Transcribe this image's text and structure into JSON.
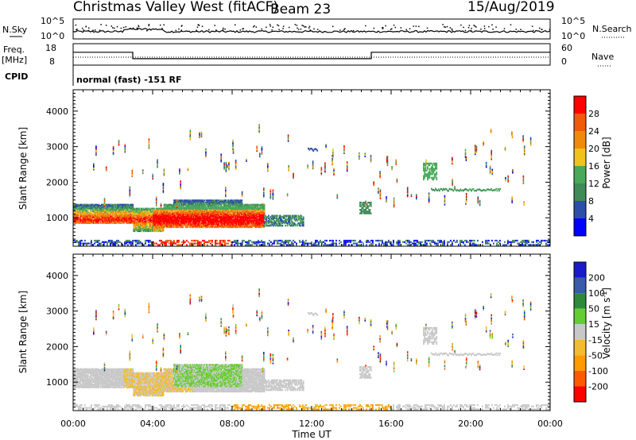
{
  "header": {
    "title": "Christmas Valley West (fitACF)",
    "beam": "Beam 23",
    "date": "15/Aug/2019"
  },
  "panels": {
    "nsky": {
      "label": "N.Sky",
      "tick_top": "10^5",
      "tick_bottom": "10^0",
      "right_tick_top": "10^5",
      "right_tick_bottom": "10^0",
      "right_label": "N.Search"
    },
    "freq": {
      "label_line1": "Freq.",
      "label_line2": "[MHz]",
      "tick_top": "18",
      "tick_bottom": "8",
      "right_tick_top": "60",
      "right_tick_bottom": "0",
      "right_label": "Nave"
    },
    "cpid": {
      "label": "CPID",
      "value": "normal (fast) -151 RF"
    }
  },
  "colors": {
    "power": [
      "#0000ff",
      "#2e4fa8",
      "#3f8a57",
      "#4aa85a",
      "#f0c21a",
      "#f08a0a",
      "#f05a0a",
      "#ff0000"
    ],
    "velocity": [
      "#ff0000",
      "#ff5a00",
      "#ff9a00",
      "#f2bb30",
      "#c8c8c8",
      "#66cc33",
      "#2e8a3a",
      "#3a5aaa",
      "#1a1acc"
    ]
  },
  "chart_data": [
    {
      "type": "heatmap",
      "name": "power",
      "ylabel": "Slant Range [km]",
      "xlabel": "",
      "ylim": [
        200,
        4600
      ],
      "yticks": [
        1000,
        2000,
        3000,
        4000
      ],
      "xlim": [
        0,
        24
      ],
      "colorbar": {
        "label": "Power [dB]",
        "ticks": [
          4,
          8,
          12,
          16,
          20,
          24,
          28
        ],
        "range": [
          0,
          32
        ]
      }
    },
    {
      "type": "heatmap",
      "name": "velocity",
      "ylabel": "Slant Range [km]",
      "xlabel": "Time UT",
      "ylim": [
        200,
        4600
      ],
      "yticks": [
        1000,
        2000,
        3000,
        4000
      ],
      "xlim": [
        0,
        24
      ],
      "xticks": [
        "00:00",
        "04:00",
        "08:00",
        "12:00",
        "16:00",
        "20:00",
        "00:00"
      ],
      "colorbar": {
        "label": "Velocity [m s^-1]",
        "ticks": [
          200,
          100,
          50,
          15,
          -15,
          -50,
          -100,
          -200
        ]
      }
    }
  ],
  "frequency_track": {
    "x_hours": [
      0,
      3,
      3,
      15,
      15,
      24
    ],
    "mhz": [
      14,
      14,
      11,
      11,
      14,
      14
    ]
  }
}
